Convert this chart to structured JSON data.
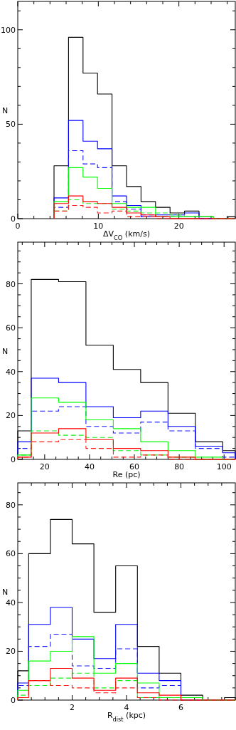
{
  "chart_data": [
    {
      "type": "histogram",
      "xlabel": "ΔV$_{CO}$ (km/s)",
      "ylabel": "N",
      "xlim": [
        0,
        27
      ],
      "ylim": [
        0,
        115
      ],
      "xticks": [
        0,
        {
          "value": 2,
          "label": null
        },
        {
          "value": 4,
          "label": null
        },
        {
          "value": 6,
          "label": null
        },
        {
          "value": 8,
          "label": null
        },
        10,
        {
          "value": 12,
          "label": null
        },
        {
          "value": 14,
          "label": null
        },
        {
          "value": 16,
          "label": null
        },
        {
          "value": 18,
          "label": null
        },
        20,
        {
          "value": 22,
          "label": null
        },
        {
          "value": 24,
          "label": null
        },
        {
          "value": 26,
          "label": null
        }
      ],
      "yticks": [
        0,
        {
          "value": 10,
          "label": null
        },
        {
          "value": 20,
          "label": null
        },
        {
          "value": 30,
          "label": null
        },
        {
          "value": 40,
          "label": null
        },
        50,
        {
          "value": 60,
          "label": null
        },
        {
          "value": 70,
          "label": null
        },
        {
          "value": 80,
          "label": null
        },
        {
          "value": 90,
          "label": null
        },
        100,
        {
          "value": 110,
          "label": null
        }
      ],
      "bins": [
        4.5,
        6.3,
        8.1,
        9.9,
        11.7,
        13.5,
        15.3,
        17.1,
        18.9,
        20.7,
        22.5,
        24.3,
        26.1,
        27
      ],
      "series": [
        {
          "color": "#000000",
          "line_style": "solid",
          "values": [
            28,
            96,
            77,
            66,
            28,
            17,
            9,
            6,
            3,
            4,
            1,
            0,
            1
          ]
        },
        {
          "color": "#0000ff",
          "line_style": "solid",
          "values": [
            11,
            52,
            41,
            37,
            12,
            7,
            1,
            2,
            2,
            3,
            0,
            0,
            0
          ]
        },
        {
          "color": "#1a1aff",
          "line_style": "dashed",
          "values": [
            6,
            36,
            29,
            27,
            9,
            5,
            2,
            1,
            1,
            1,
            0,
            0,
            0
          ]
        },
        {
          "color": "#00ff00",
          "line_style": "solid",
          "values": [
            9,
            27,
            22,
            16,
            8,
            6,
            6,
            1,
            1,
            1,
            1,
            0,
            0
          ]
        },
        {
          "color": "#1aee1a",
          "line_style": "dashed",
          "values": [
            4,
            10,
            8,
            8,
            5,
            4,
            3,
            3,
            2,
            1,
            1,
            0,
            0
          ]
        },
        {
          "color": "#ff0000",
          "line_style": "solid",
          "values": [
            8,
            12,
            9,
            8,
            6,
            3,
            2,
            1,
            0,
            0,
            0,
            0,
            0
          ]
        },
        {
          "color": "#ff1a1a",
          "line_style": "dashed",
          "values": [
            4,
            7,
            6,
            3,
            4,
            1,
            1,
            0,
            0,
            0,
            0,
            0,
            0
          ]
        }
      ]
    },
    {
      "type": "histogram",
      "xlabel": "Re (pc)",
      "ylabel": "N",
      "xlim": [
        8,
        105
      ],
      "ylim": [
        0,
        99
      ],
      "xticks": [
        {
          "value": 10,
          "label": null
        },
        {
          "value": 15,
          "label": null
        },
        20,
        {
          "value": 25,
          "label": null
        },
        {
          "value": 30,
          "label": null
        },
        {
          "value": 35,
          "label": null
        },
        40,
        {
          "value": 45,
          "label": null
        },
        {
          "value": 50,
          "label": null
        },
        {
          "value": 55,
          "label": null
        },
        60,
        {
          "value": 65,
          "label": null
        },
        {
          "value": 70,
          "label": null
        },
        {
          "value": 75,
          "label": null
        },
        80,
        {
          "value": 85,
          "label": null
        },
        {
          "value": 90,
          "label": null
        },
        {
          "value": 95,
          "label": null
        },
        100
      ],
      "yticks": [
        0,
        {
          "value": 5,
          "label": null
        },
        {
          "value": 10,
          "label": null
        },
        {
          "value": 15,
          "label": null
        },
        20,
        {
          "value": 25,
          "label": null
        },
        {
          "value": 30,
          "label": null
        },
        {
          "value": 35,
          "label": null
        },
        40,
        {
          "value": 45,
          "label": null
        },
        {
          "value": 50,
          "label": null
        },
        {
          "value": 55,
          "label": null
        },
        60,
        {
          "value": 65,
          "label": null
        },
        {
          "value": 70,
          "label": null
        },
        {
          "value": 75,
          "label": null
        },
        80,
        {
          "value": 85,
          "label": null
        },
        {
          "value": 90,
          "label": null
        },
        {
          "value": 95,
          "label": null
        }
      ],
      "bins": [
        8,
        14,
        26.2,
        38.4,
        50.6,
        62.8,
        75,
        87.2,
        99.4,
        105
      ],
      "series": [
        {
          "color": "#000000",
          "line_style": "solid",
          "values": [
            13,
            82,
            81,
            52,
            41,
            35,
            21,
            8,
            4
          ]
        },
        {
          "color": "#0000ff",
          "line_style": "solid",
          "values": [
            8,
            37,
            35,
            24,
            19,
            22,
            15,
            6,
            3
          ]
        },
        {
          "color": "#1a1aff",
          "line_style": "dashed",
          "values": [
            5,
            22,
            24,
            15,
            12,
            17,
            13,
            5,
            1
          ]
        },
        {
          "color": "#00ff00",
          "line_style": "solid",
          "values": [
            2,
            28,
            26,
            18,
            14,
            8,
            4,
            1,
            0
          ]
        },
        {
          "color": "#1aee1a",
          "line_style": "dashed",
          "values": [
            2,
            13,
            11,
            10,
            4,
            2,
            1,
            0,
            0
          ]
        },
        {
          "color": "#ff0000",
          "line_style": "solid",
          "values": [
            1,
            12,
            14,
            9,
            5,
            4,
            1,
            0,
            0
          ]
        },
        {
          "color": "#ff1a1a",
          "line_style": "dashed",
          "values": [
            1,
            8,
            9,
            5,
            1,
            2,
            0,
            0,
            0
          ]
        }
      ]
    },
    {
      "type": "histogram",
      "xlabel": "R$_{dist}$ (kpc)",
      "ylabel": "N",
      "xlim": [
        0,
        8
      ],
      "ylim": [
        0,
        89
      ],
      "xticks": [
        {
          "value": 0.5,
          "label": null
        },
        {
          "value": 1,
          "label": null
        },
        {
          "value": 1.5,
          "label": null
        },
        2,
        {
          "value": 2.5,
          "label": null
        },
        {
          "value": 3,
          "label": null
        },
        {
          "value": 3.5,
          "label": null
        },
        4,
        {
          "value": 4.5,
          "label": null
        },
        {
          "value": 5,
          "label": null
        },
        {
          "value": 5.5,
          "label": null
        },
        6,
        {
          "value": 6.5,
          "label": null
        },
        {
          "value": 7,
          "label": null
        },
        {
          "value": 7.5,
          "label": null
        }
      ],
      "yticks": [
        0,
        {
          "value": 5,
          "label": null
        },
        {
          "value": 10,
          "label": null
        },
        {
          "value": 15,
          "label": null
        },
        20,
        {
          "value": 25,
          "label": null
        },
        {
          "value": 30,
          "label": null
        },
        {
          "value": 35,
          "label": null
        },
        40,
        {
          "value": 45,
          "label": null
        },
        {
          "value": 50,
          "label": null
        },
        {
          "value": 55,
          "label": null
        },
        60,
        {
          "value": 65,
          "label": null
        },
        {
          "value": 70,
          "label": null
        },
        {
          "value": 75,
          "label": null
        },
        80,
        {
          "value": 85,
          "label": null
        }
      ],
      "bins": [
        0,
        0.4,
        1.2,
        2.0,
        2.8,
        3.6,
        4.4,
        5.2,
        6.0,
        6.8,
        7.6,
        8
      ],
      "series": [
        {
          "color": "#000000",
          "line_style": "solid",
          "values": [
            12,
            60,
            74,
            64,
            36,
            55,
            22,
            11,
            2,
            0,
            1
          ]
        },
        {
          "color": "#0000ff",
          "line_style": "solid",
          "values": [
            7,
            31,
            38,
            25,
            17,
            31,
            11,
            8,
            0,
            0,
            0
          ]
        },
        {
          "color": "#1a1aff",
          "line_style": "dashed",
          "values": [
            6,
            22,
            27,
            14,
            13,
            21,
            5,
            6,
            0,
            0,
            0
          ]
        },
        {
          "color": "#00ff00",
          "line_style": "solid",
          "values": [
            4,
            16,
            20,
            26,
            11,
            15,
            7,
            1,
            1,
            0,
            0
          ]
        },
        {
          "color": "#1aee1a",
          "line_style": "dashed",
          "values": [
            2,
            6,
            9,
            11,
            5,
            8,
            1,
            1,
            0,
            0,
            0
          ]
        },
        {
          "color": "#ff0000",
          "line_style": "solid",
          "values": [
            1,
            8,
            13,
            9,
            4,
            9,
            3,
            2,
            0,
            0,
            0
          ]
        },
        {
          "color": "#ff1a1a",
          "line_style": "dashed",
          "values": [
            1,
            8,
            6,
            5,
            3,
            5,
            1,
            0,
            0,
            0,
            0
          ]
        }
      ]
    }
  ]
}
